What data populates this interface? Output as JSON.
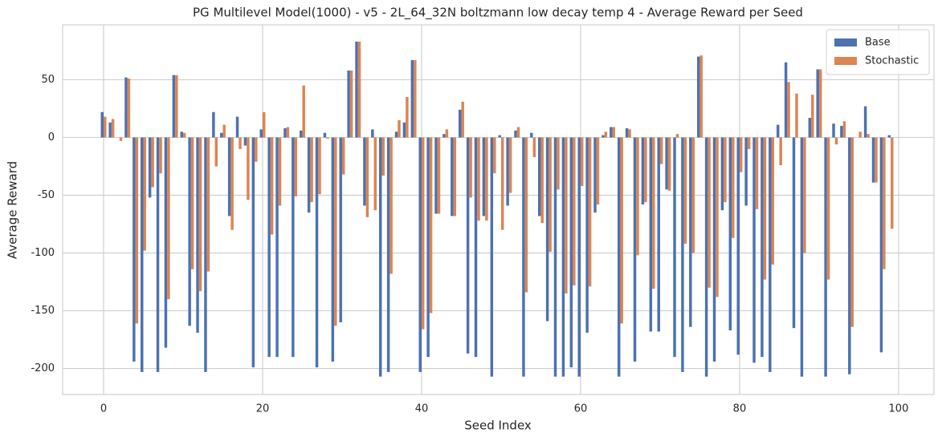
{
  "chart_data": {
    "type": "bar",
    "title": "PG Multilevel Model(1000) - v5 - 2L_64_32N boltzmann low decay temp 4 - Average Reward per Seed",
    "x_label": "Seed Index",
    "y_label": "Average Reward",
    "x": [
      0,
      1,
      2,
      3,
      4,
      5,
      6,
      7,
      8,
      9,
      10,
      11,
      12,
      13,
      14,
      15,
      16,
      17,
      18,
      19,
      20,
      21,
      22,
      23,
      24,
      25,
      26,
      27,
      28,
      29,
      30,
      31,
      32,
      33,
      34,
      35,
      36,
      37,
      38,
      39,
      40,
      41,
      42,
      43,
      44,
      45,
      46,
      47,
      48,
      49,
      50,
      51,
      52,
      53,
      54,
      55,
      56,
      57,
      58,
      59,
      60,
      61,
      62,
      63,
      64,
      65,
      66,
      67,
      68,
      69,
      70,
      71,
      72,
      73,
      74,
      75,
      76,
      77,
      78,
      79,
      80,
      81,
      82,
      83,
      84,
      85,
      86,
      87,
      88,
      89,
      90,
      91,
      92,
      93,
      94,
      95,
      96,
      97,
      98,
      99
    ],
    "series": [
      {
        "name": "Base",
        "color": "#4c72b0",
        "values": [
          22,
          13,
          0,
          52,
          -194,
          -203,
          -52,
          -203,
          -182,
          54,
          5,
          -163,
          -169,
          -203,
          22,
          4,
          -68,
          18,
          -7,
          -199,
          7,
          -190,
          -190,
          8,
          -190,
          6,
          -65,
          -199,
          4,
          -194,
          -160,
          58,
          83,
          -59,
          7,
          -207,
          -203,
          5,
          13,
          67,
          -203,
          -190,
          -66,
          3,
          -68,
          24,
          -187,
          -190,
          -68,
          -207,
          2,
          -59,
          6,
          -207,
          4,
          -68,
          -159,
          -207,
          -207,
          -199,
          -207,
          -169,
          -65,
          2,
          9,
          -207,
          8,
          -194,
          -58,
          -168,
          -168,
          -45,
          -190,
          -203,
          -164,
          70,
          -207,
          -194,
          -63,
          -167,
          -188,
          -59,
          -195,
          -190,
          -203,
          11,
          65,
          -165,
          -207,
          17,
          59,
          -207,
          12,
          10,
          -205,
          0,
          27,
          -39,
          -186,
          2
        ]
      },
      {
        "name": "Stochastic",
        "color": "#dd8452",
        "values": [
          18,
          16,
          -3,
          51,
          -161,
          -98,
          -43,
          -31,
          -140,
          54,
          4,
          -114,
          -133,
          -116,
          -25,
          11,
          -80,
          -10,
          -54,
          -21,
          22,
          -84,
          -59,
          9,
          -51,
          45,
          -56,
          -49,
          -1,
          -163,
          -32,
          58,
          83,
          -69,
          -63,
          -33,
          -118,
          15,
          35,
          67,
          -166,
          -152,
          -66,
          7,
          -68,
          31,
          -52,
          -72,
          -72,
          -31,
          -80,
          -48,
          9,
          -134,
          -17,
          -74,
          -99,
          -45,
          -135,
          -128,
          -42,
          -129,
          -58,
          5,
          9,
          -161,
          7,
          -102,
          -56,
          -131,
          -23,
          -46,
          3,
          -92,
          -100,
          71,
          -130,
          -138,
          -56,
          -87,
          -30,
          -10,
          -62,
          -123,
          -110,
          -24,
          48,
          38,
          -100,
          37,
          59,
          -123,
          -6,
          14,
          -164,
          5,
          3,
          -39,
          -114,
          -79
        ]
      }
    ],
    "xlim": [
      -5.15,
      104.45
    ],
    "xticks": [
      0,
      20,
      40,
      60,
      80,
      100
    ],
    "ylim": [
      -222.5,
      97.5
    ],
    "yticks": [
      -200,
      -150,
      -100,
      -50,
      0,
      50
    ],
    "grid": true,
    "legend": "upper right"
  }
}
